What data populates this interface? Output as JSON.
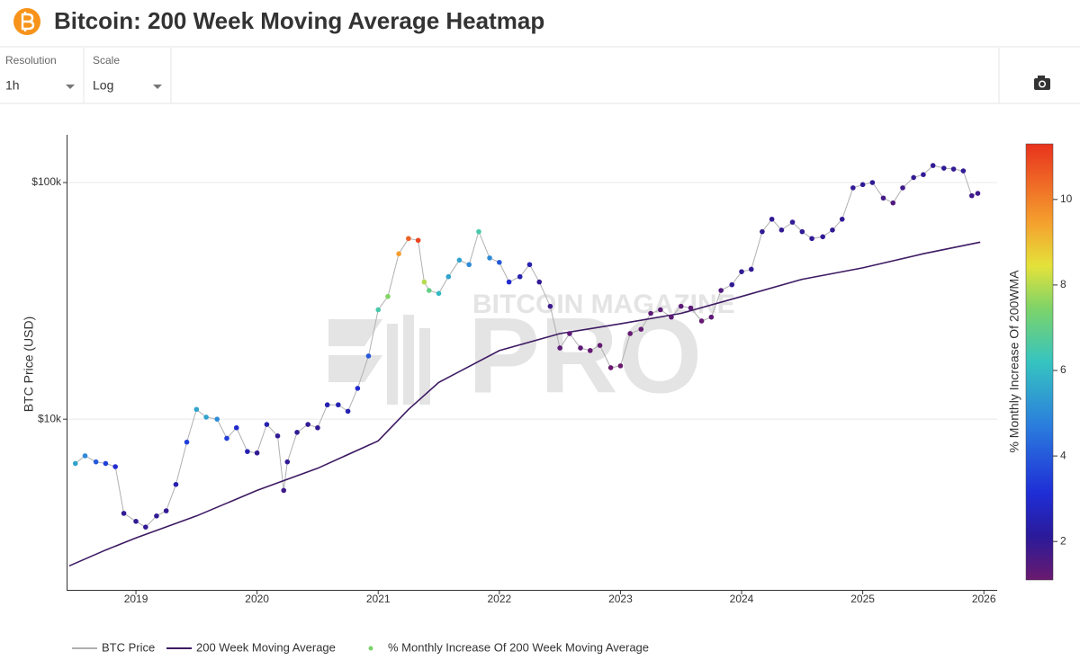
{
  "header": {
    "title": "Bitcoin: 200 Week Moving Average Heatmap"
  },
  "controls": [
    {
      "label": "Resolution",
      "value": "1h"
    },
    {
      "label": "Scale",
      "value": "Log"
    }
  ],
  "watermark": {
    "line1": "BITCOIN MAGAZINE",
    "line2": "PRO"
  },
  "chart_data": {
    "type": "scatter",
    "ylabel": "BTC Price (USD)",
    "yscale": "log",
    "grid": true,
    "xlim": [
      2018.435,
      2026.11
    ],
    "xticks": [
      2019,
      2020,
      2021,
      2022,
      2023,
      2024,
      2025,
      2026
    ],
    "ylim": [
      1900,
      159000
    ],
    "yticks": [
      {
        "value": 10000,
        "label": "$10k"
      },
      {
        "value": 100000,
        "label": "$100k"
      }
    ],
    "series": [
      {
        "name": "BTC Price",
        "color": "#b0b0b0",
        "x": [
          2018.5,
          2018.58,
          2018.67,
          2018.75,
          2018.83,
          2018.9,
          2019.0,
          2019.08,
          2019.17,
          2019.25,
          2019.33,
          2019.42,
          2019.5,
          2019.58,
          2019.67,
          2019.75,
          2019.83,
          2019.92,
          2020.0,
          2020.08,
          2020.17,
          2020.22,
          2020.25,
          2020.33,
          2020.42,
          2020.5,
          2020.58,
          2020.67,
          2020.75,
          2020.83,
          2020.92,
          2021.0,
          2021.08,
          2021.17,
          2021.25,
          2021.33,
          2021.38,
          2021.42,
          2021.5,
          2021.58,
          2021.67,
          2021.75,
          2021.83,
          2021.92,
          2022.0,
          2022.08,
          2022.17,
          2022.25,
          2022.33,
          2022.42,
          2022.5,
          2022.58,
          2022.67,
          2022.75,
          2022.83,
          2022.92,
          2023.0,
          2023.08,
          2023.17,
          2023.25,
          2023.33,
          2023.42,
          2023.5,
          2023.58,
          2023.67,
          2023.75,
          2023.83,
          2023.92,
          2024.0,
          2024.08,
          2024.17,
          2024.25,
          2024.33,
          2024.42,
          2024.5,
          2024.58,
          2024.67,
          2024.75,
          2024.83,
          2024.92,
          2025.0,
          2025.08,
          2025.17,
          2025.25,
          2025.33,
          2025.42,
          2025.5,
          2025.58,
          2025.67,
          2025.75,
          2025.83,
          2025.9,
          2025.95
        ],
        "values": [
          6500,
          7000,
          6600,
          6500,
          6300,
          4000,
          3700,
          3500,
          3900,
          4100,
          5300,
          8000,
          11000,
          10200,
          10000,
          8300,
          9200,
          7300,
          7200,
          9500,
          8500,
          5000,
          6600,
          8800,
          9500,
          9200,
          11500,
          11500,
          10800,
          13500,
          18500,
          29000,
          33000,
          50000,
          58000,
          57000,
          38000,
          35000,
          34000,
          40000,
          47000,
          45000,
          62000,
          48000,
          46000,
          38000,
          40000,
          45000,
          38000,
          30000,
          20000,
          23000,
          20000,
          19500,
          20500,
          16500,
          16800,
          23000,
          24000,
          28000,
          29000,
          27000,
          30000,
          29500,
          26000,
          27000,
          35000,
          37000,
          42000,
          43000,
          62000,
          70000,
          63000,
          68000,
          62000,
          58000,
          59000,
          63000,
          70000,
          95000,
          98000,
          100000,
          86000,
          82000,
          95000,
          105000,
          108000,
          118000,
          115000,
          114000,
          112000,
          88000,
          90000
        ],
        "color_values": [
          5.5,
          5,
          4,
          3.5,
          3,
          2,
          2,
          2,
          2,
          2,
          2.5,
          3.5,
          5.5,
          5.5,
          5,
          3.5,
          3,
          2.5,
          2,
          2.5,
          2,
          1.8,
          2,
          2,
          2,
          2,
          2.5,
          2.5,
          2.5,
          3,
          4,
          6.5,
          7.5,
          9.5,
          10.5,
          11,
          8,
          7,
          6,
          5.5,
          5.5,
          5,
          6.5,
          5,
          4,
          3,
          2.5,
          2.5,
          2,
          1.8,
          1.3,
          1.3,
          1.3,
          1.2,
          1.2,
          1.1,
          1.1,
          1.2,
          1.2,
          1.3,
          1.3,
          1.3,
          1.3,
          1.3,
          1.2,
          1.3,
          1.5,
          2,
          2,
          2,
          2,
          2,
          2,
          2,
          2,
          2,
          2,
          2,
          2,
          2,
          2,
          2,
          1.7,
          1.5,
          1.8,
          2,
          2,
          2,
          2,
          2,
          2,
          1.8,
          1.8
        ]
      },
      {
        "name": "200 Week Moving Average",
        "color": "#3d1a63",
        "x": [
          2018.45,
          2018.75,
          2019.0,
          2019.5,
          2020.0,
          2020.5,
          2021.0,
          2021.25,
          2021.5,
          2022.0,
          2022.5,
          2023.0,
          2023.5,
          2024.0,
          2024.5,
          2025.0,
          2025.5,
          2025.97
        ],
        "values": [
          2400,
          2800,
          3150,
          3900,
          5000,
          6200,
          8100,
          11000,
          14300,
          19500,
          23000,
          25300,
          28000,
          33000,
          39000,
          43600,
          50000,
          56000
        ]
      }
    ],
    "colorbar": {
      "title": "% Monthly Increase Of 200WMA",
      "legend_name": "% Monthly Increase Of 200 Week Moving Average",
      "legend_color": "#7bd36a",
      "clim": [
        1.1,
        11.3
      ],
      "cticks": [
        2,
        4,
        6,
        8,
        10
      ],
      "colorscale": [
        [
          0,
          "#6a1a6e"
        ],
        [
          0.1,
          "#2a1a9a"
        ],
        [
          0.2,
          "#1f2ed6"
        ],
        [
          0.35,
          "#2a7bde"
        ],
        [
          0.5,
          "#36c4c0"
        ],
        [
          0.62,
          "#7bd36a"
        ],
        [
          0.72,
          "#e4e23a"
        ],
        [
          0.82,
          "#f5a02e"
        ],
        [
          1,
          "#e8321e"
        ]
      ]
    }
  }
}
